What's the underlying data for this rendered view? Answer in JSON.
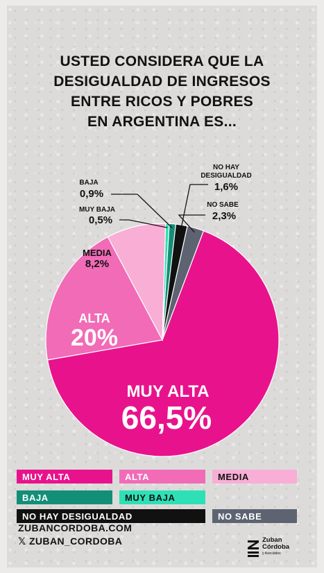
{
  "chart_data": {
    "type": "pie",
    "title_lines": [
      "USTED CONSIDERA QUE LA",
      "DESIGUALDAD DE INGRESOS",
      "ENTRE RICOS Y POBRES",
      "EN ARGENTINA ES..."
    ],
    "unit": "%",
    "slices": [
      {
        "label": "MUY ALTA",
        "value": 66.5,
        "display": "66,5%",
        "color": "#e8138c"
      },
      {
        "label": "ALTA",
        "value": 20,
        "display": "20%",
        "color": "#f16bb7"
      },
      {
        "label": "MEDIA",
        "value": 8.2,
        "display": "8,2%",
        "color": "#f8aed5"
      },
      {
        "label": "BAJA",
        "value": 0.9,
        "display": "0,9%",
        "color": "#138f78"
      },
      {
        "label": "MUY BAJA",
        "value": 0.5,
        "display": "0,5%",
        "color": "#2ee0b6"
      },
      {
        "label": "NO HAY DESIGUALDAD",
        "label_lines": [
          "NO HAY",
          "DESIGUALDAD"
        ],
        "value": 1.6,
        "display": "1,6%",
        "color": "#111111"
      },
      {
        "label": "NO SABE",
        "value": 2.3,
        "display": "2,3%",
        "color": "#5d6371"
      }
    ],
    "legend_placement": "bottom"
  },
  "footer": {
    "website": "ZUBANCORDOBA.COM",
    "handle": "𝕏 ZUBAN_CORDOBA"
  },
  "brand": {
    "name_lines": [
      "Zuban",
      "Córdoba"
    ],
    "sub": "y Asociados",
    "logo_icon": "zuban-cordoba-logo-icon"
  }
}
